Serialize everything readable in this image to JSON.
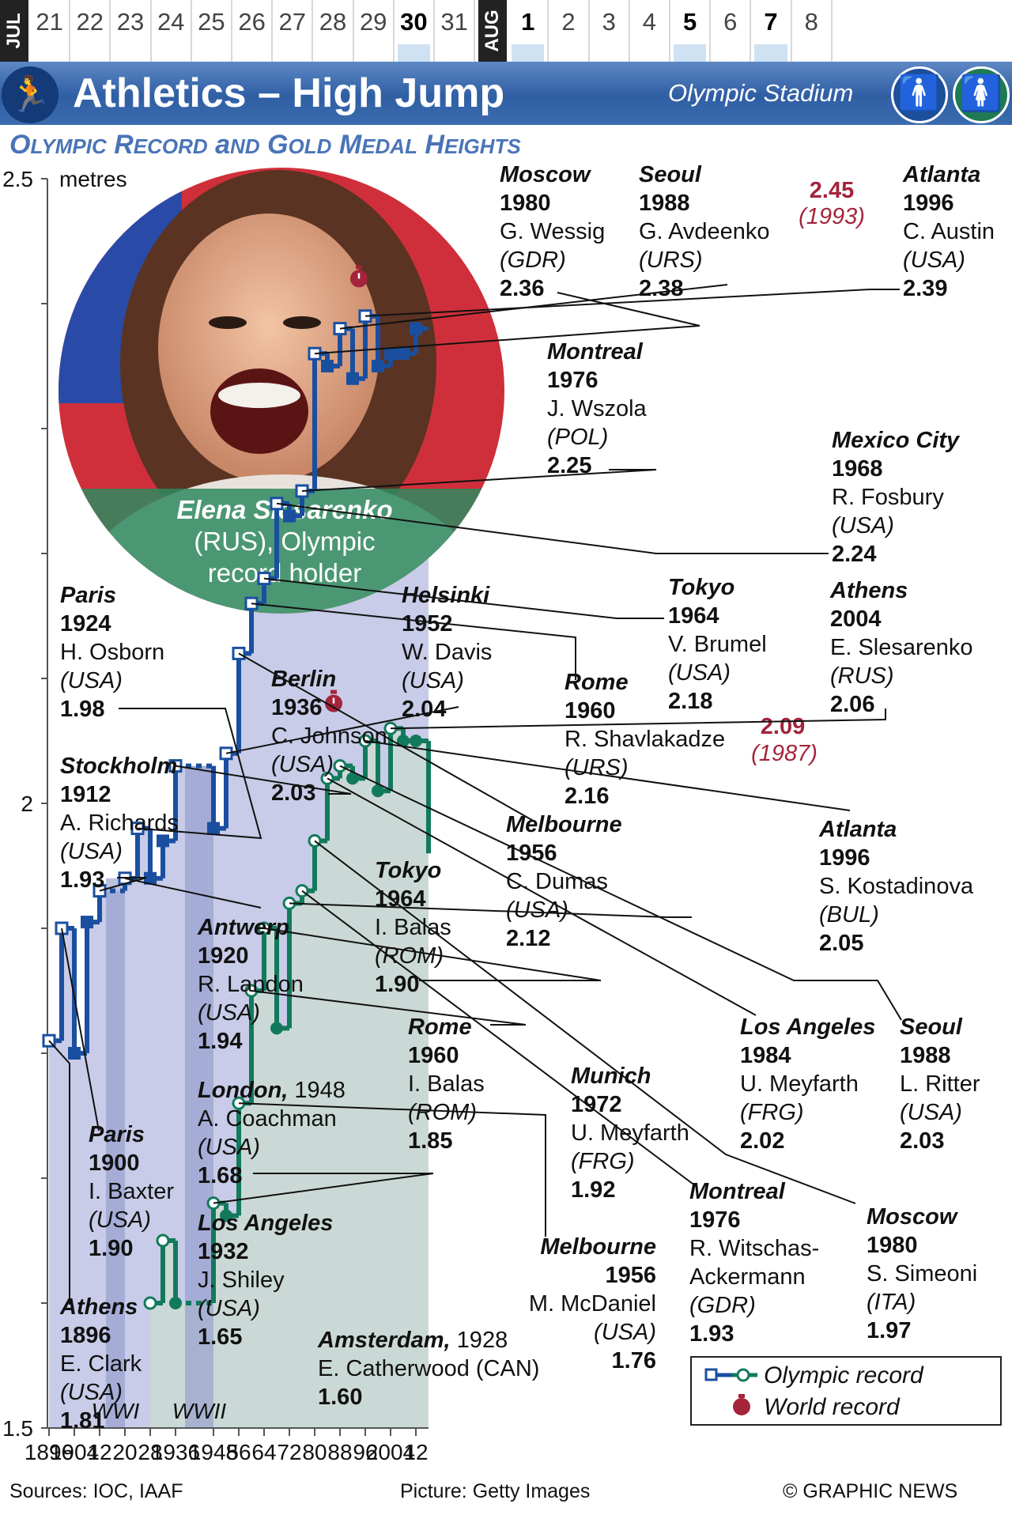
{
  "date_strip": {
    "months": [
      "JUL",
      "AUG"
    ],
    "july_days": [
      "21",
      "22",
      "23",
      "24",
      "25",
      "26",
      "27",
      "28",
      "29",
      "30",
      "31"
    ],
    "aug_days": [
      "1",
      "2",
      "3",
      "4",
      "5",
      "6",
      "7",
      "8"
    ],
    "bold_days": [
      "30",
      "1",
      "5",
      "7"
    ],
    "event_days": [
      "30",
      "1",
      "5",
      "7"
    ]
  },
  "banner": {
    "sport_icon": "high-jumper-icon",
    "title": "Athletics – High Jump",
    "venue": "Olympic Stadium",
    "gender_icons": [
      "man-icon",
      "woman-icon"
    ]
  },
  "subtitle": "Olympic Record and Gold Medal Heights",
  "photo": {
    "caption_name": "Elena Slesarenko",
    "caption_rest": [
      "(RUS), Olympic",
      "record holder"
    ]
  },
  "footer": {
    "sources": "Sources: IOC, IAAF",
    "picture": "Picture: Getty Images",
    "copyright": "© GRAPHIC NEWS"
  },
  "colors": {
    "men": "#1a4fa0",
    "women": "#127a5c",
    "world_record": "#a3243b",
    "men_area": "#c8cce8",
    "women_area": "#cbd9d6",
    "war_band": "#8e98c9"
  },
  "chart_data": {
    "type": "line",
    "ylabel": "metres",
    "ylim": [
      1.5,
      2.5
    ],
    "yticks": [
      "1.5",
      "2",
      "2.5"
    ],
    "xticks": [
      "1896",
      "1904",
      "12",
      "20",
      "28",
      "1936",
      "1948",
      "56",
      "64",
      "72",
      "80",
      "88",
      "96",
      "2004",
      "12"
    ],
    "war_bands": [
      {
        "label": "WWI",
        "from": 1914,
        "to": 1920
      },
      {
        "label": "WWII",
        "from": 1939,
        "to": 1948
      }
    ],
    "series": [
      {
        "name": "men",
        "x": [
          1896,
          1900,
          1904,
          1908,
          1912,
          1920,
          1924,
          1928,
          1932,
          1936,
          1948,
          1952,
          1956,
          1960,
          1964,
          1968,
          1972,
          1976,
          1980,
          1984,
          1988,
          1992,
          1996,
          2000,
          2004,
          2008,
          2012
        ],
        "y": [
          1.81,
          1.9,
          1.8,
          1.905,
          1.93,
          1.94,
          1.98,
          1.94,
          1.97,
          2.03,
          1.98,
          2.04,
          2.12,
          2.16,
          2.18,
          2.24,
          2.23,
          2.25,
          2.36,
          2.35,
          2.38,
          2.34,
          2.39,
          2.35,
          2.36,
          2.36,
          2.38
        ],
        "record": [
          true,
          true,
          false,
          false,
          true,
          true,
          true,
          false,
          false,
          true,
          false,
          true,
          true,
          true,
          true,
          true,
          false,
          true,
          true,
          false,
          true,
          false,
          true,
          false,
          false,
          false,
          false
        ]
      },
      {
        "name": "women",
        "x": [
          1928,
          1932,
          1936,
          1948,
          1952,
          1956,
          1960,
          1964,
          1968,
          1972,
          1976,
          1980,
          1984,
          1988,
          1992,
          1996,
          2000,
          2004,
          2008,
          2012
        ],
        "y": [
          1.6,
          1.65,
          1.6,
          1.68,
          1.67,
          1.76,
          1.85,
          1.9,
          1.82,
          1.92,
          1.93,
          1.97,
          2.02,
          2.03,
          2.02,
          2.05,
          2.01,
          2.06,
          2.05,
          2.05
        ],
        "record": [
          true,
          true,
          false,
          true,
          false,
          true,
          true,
          true,
          false,
          true,
          true,
          true,
          true,
          true,
          false,
          true,
          false,
          true,
          false,
          false
        ]
      }
    ],
    "world_records": [
      {
        "value": "2.45",
        "year": "(1993)",
        "x": 1994,
        "y": 2.42
      },
      {
        "value": "2.09",
        "year": "(1987)",
        "x": 1986,
        "y": 2.08
      }
    ],
    "legend": {
      "position": "bottom-right",
      "items": [
        "Olympic record",
        "World record"
      ]
    },
    "men_annotations": [
      {
        "city": "Athens",
        "year": "1896",
        "athlete": "E. Clark",
        "country": "(USA)",
        "height": "1.81"
      },
      {
        "city": "Paris",
        "year": "1900",
        "athlete": "I. Baxter",
        "country": "(USA)",
        "height": "1.90"
      },
      {
        "city": "Stockholm",
        "year": "1912",
        "athlete": "A. Richards",
        "country": "(USA)",
        "height": "1.93"
      },
      {
        "city": "Antwerp",
        "year": "1920",
        "athlete": "R. Landon",
        "country": "(USA)",
        "height": "1.94"
      },
      {
        "city": "Paris",
        "year": "1924",
        "athlete": "H. Osborn",
        "country": "(USA)",
        "height": "1.98"
      },
      {
        "city": "Berlin",
        "year": "1936",
        "athlete": "C. Johnson",
        "country": "(USA)",
        "height": "2.03"
      },
      {
        "city": "Helsinki",
        "year": "1952",
        "athlete": "W. Davis",
        "country": "(USA)",
        "height": "2.04"
      },
      {
        "city": "Melbourne",
        "year": "1956",
        "athlete": "C. Dumas",
        "country": "(USA)",
        "height": "2.12"
      },
      {
        "city": "Rome",
        "year": "1960",
        "athlete": "R. Shavlakadze",
        "country": "(URS)",
        "height": "2.16"
      },
      {
        "city": "Tokyo",
        "year": "1964",
        "athlete": "V. Brumel",
        "country": "(USA)",
        "height": "2.18"
      },
      {
        "city": "Mexico City",
        "year": "1968",
        "athlete": "R. Fosbury",
        "country": "(USA)",
        "height": "2.24"
      },
      {
        "city": "Montreal",
        "year": "1976",
        "athlete": "J. Wszola",
        "country": "(POL)",
        "height": "2.25"
      },
      {
        "city": "Moscow",
        "year": "1980",
        "athlete": "G. Wessig",
        "country": "(GDR)",
        "height": "2.36"
      },
      {
        "city": "Seoul",
        "year": "1988",
        "athlete": "G. Avdeenko",
        "country": "(URS)",
        "height": "2.38"
      },
      {
        "city": "Atlanta",
        "year": "1996",
        "athlete": "C. Austin",
        "country": "(USA)",
        "height": "2.39"
      }
    ],
    "women_annotations": [
      {
        "city": "Amsterdam,",
        "year": "1928",
        "athlete": "E. Catherwood",
        "country": "(CAN)",
        "height": "1.60"
      },
      {
        "city": "Los Angeles",
        "year": "1932",
        "athlete": "J. Shiley",
        "country": "(USA)",
        "height": "1.65"
      },
      {
        "city": "London,",
        "year": "1948",
        "athlete": "A. Coachman",
        "country": "(USA)",
        "height": "1.68"
      },
      {
        "city": "Melbourne",
        "year": "1956",
        "athlete": "M. McDaniel",
        "country": "(USA)",
        "height": "1.76"
      },
      {
        "city": "Rome",
        "year": "1960",
        "athlete": "I. Balas",
        "country": "(ROM)",
        "height": "1.85"
      },
      {
        "city": "Tokyo",
        "year": "1964",
        "athlete": "I. Balas",
        "country": "(ROM)",
        "height": "1.90"
      },
      {
        "city": "Munich",
        "year": "1972",
        "athlete": "U. Meyfarth",
        "country": "(FRG)",
        "height": "1.92"
      },
      {
        "city": "Montreal",
        "year": "1976",
        "athlete": "R. Witschas-Ackermann",
        "athlete_lines": [
          "R. Witschas-",
          "Ackermann"
        ],
        "country": "(GDR)",
        "height": "1.93"
      },
      {
        "city": "Moscow",
        "year": "1980",
        "athlete": "S. Simeoni",
        "country": "(ITA)",
        "height": "1.97"
      },
      {
        "city": "Los Angeles",
        "year": "1984",
        "athlete": "U. Meyfarth",
        "country": "(FRG)",
        "height": "2.02"
      },
      {
        "city": "Seoul",
        "year": "1988",
        "athlete": "L. Ritter",
        "country": "(USA)",
        "height": "2.03"
      },
      {
        "city": "Atlanta",
        "year": "1996",
        "athlete": "S. Kostadinova",
        "country": "(BUL)",
        "height": "2.05"
      },
      {
        "city": "Athens",
        "year": "2004",
        "athlete": "E. Slesarenko",
        "country": "(RUS)",
        "height": "2.06"
      }
    ]
  }
}
